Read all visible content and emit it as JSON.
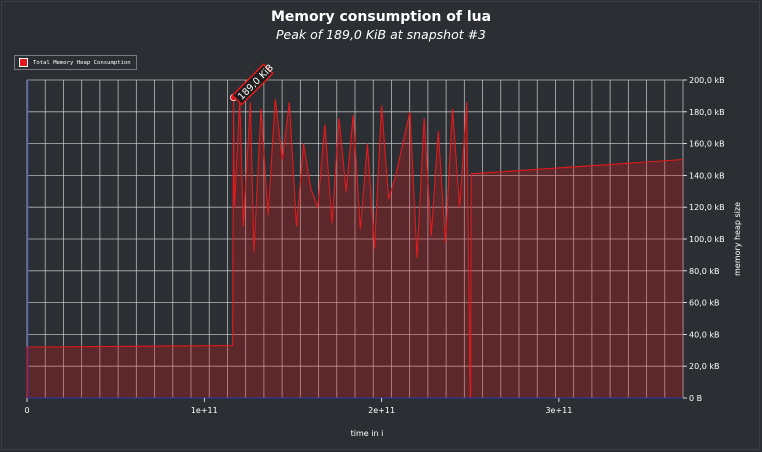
{
  "chart_data": {
    "type": "area",
    "title": "Memory consumption of lua",
    "subtitle": "Peak of 189,0 KiB at snapshot #3",
    "xlabel": "time in i",
    "ylabel": "memory heap size",
    "xlim": [
      0,
      370000000000
    ],
    "ylim": [
      0,
      200
    ],
    "x_ticks": [
      {
        "value": 0,
        "label": "0"
      },
      {
        "value": 100000000000,
        "label": "1e+11"
      },
      {
        "value": 200000000000,
        "label": "2e+11"
      },
      {
        "value": 300000000000,
        "label": "3e+11"
      }
    ],
    "y_ticks": [
      {
        "value": 0,
        "label": "0 B"
      },
      {
        "value": 20,
        "label": "20,0 kB"
      },
      {
        "value": 40,
        "label": "40,0 kB"
      },
      {
        "value": 60,
        "label": "60,0 kB"
      },
      {
        "value": 80,
        "label": "80,0 kB"
      },
      {
        "value": 100,
        "label": "100,0 kB"
      },
      {
        "value": 120,
        "label": "120,0 kB"
      },
      {
        "value": 140,
        "label": "140,0 kB"
      },
      {
        "value": 160,
        "label": "160,0 kB"
      },
      {
        "value": 180,
        "label": "180,0 kB"
      },
      {
        "value": 200,
        "label": "200,0 kB"
      }
    ],
    "grid": true,
    "legend_position": "top-left",
    "series": [
      {
        "name": "Total Memory Heap Consumption",
        "color": "#e31a1c",
        "x": [
          0,
          0,
          116000000000,
          116500000000,
          117000000000,
          120000000000,
          122000000000,
          126000000000,
          128000000000,
          132000000000,
          136000000000,
          140000000000,
          144000000000,
          148000000000,
          152000000000,
          156000000000,
          160000000000,
          164000000000,
          168000000000,
          172000000000,
          176000000000,
          180000000000,
          184000000000,
          188000000000,
          192000000000,
          196000000000,
          200000000000,
          204000000000,
          208000000000,
          212000000000,
          216000000000,
          220000000000,
          224000000000,
          228000000000,
          232000000000,
          236000000000,
          240000000000,
          244000000000,
          248000000000,
          250000000000,
          250200000000,
          250500000000,
          370000000000
        ],
        "values": [
          0,
          32,
          33,
          189,
          120,
          188,
          108,
          186,
          92,
          182,
          115,
          188,
          150,
          186,
          108,
          160,
          132,
          120,
          172,
          110,
          176,
          130,
          178,
          106,
          160,
          94,
          184,
          125,
          140,
          160,
          180,
          88,
          176,
          102,
          168,
          98,
          182,
          120,
          186,
          1,
          1,
          141,
          150
        ]
      }
    ],
    "annotations": [
      {
        "text": "189,0 KiB",
        "x": 116500000000,
        "y": 189
      }
    ]
  }
}
